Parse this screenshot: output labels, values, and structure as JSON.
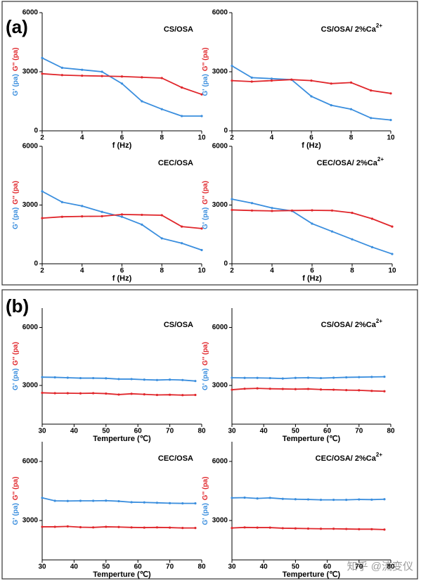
{
  "panel_labels": [
    "(a)",
    "(b)"
  ],
  "watermark": "知乎 @流变仪",
  "chart_data": [
    {
      "type": "line",
      "title": "CS/OSA",
      "xlabel": "f (Hz)",
      "x": [
        2,
        3,
        4,
        5,
        6,
        7,
        8,
        9,
        10
      ],
      "xlim": [
        2,
        10
      ],
      "xticks": [
        2,
        4,
        6,
        8,
        10
      ],
      "ylim": [
        0,
        6000
      ],
      "yticks": [
        0,
        3000,
        6000
      ],
      "series": [
        {
          "name": "G' (pa)",
          "color": "#3a8ede",
          "values": [
            3700,
            3200,
            3100,
            3000,
            2400,
            1500,
            1100,
            750,
            750
          ]
        },
        {
          "name": "G'' (pa)",
          "color": "#e0262b",
          "values": [
            2900,
            2830,
            2800,
            2780,
            2760,
            2720,
            2680,
            2200,
            1850
          ]
        }
      ]
    },
    {
      "type": "line",
      "title": "CS/OSA/ 2%Ca",
      "title_sup": "2+",
      "xlabel": "f (Hz)",
      "x": [
        2,
        3,
        4,
        5,
        6,
        7,
        8,
        9,
        10
      ],
      "xlim": [
        2,
        10
      ],
      "xticks": [
        2,
        4,
        6,
        8,
        10
      ],
      "ylim": [
        0,
        6000
      ],
      "yticks": [
        0,
        3000,
        6000
      ],
      "series": [
        {
          "name": "G' (pa)",
          "color": "#3a8ede",
          "values": [
            3300,
            2700,
            2650,
            2600,
            1750,
            1300,
            1100,
            650,
            550
          ]
        },
        {
          "name": "G'' (pa)",
          "color": "#e0262b",
          "values": [
            2550,
            2500,
            2550,
            2600,
            2550,
            2400,
            2450,
            2050,
            1900
          ]
        }
      ]
    },
    {
      "type": "line",
      "title": "CEC/OSA",
      "xlabel": "f (Hz)",
      "x": [
        2,
        3,
        4,
        5,
        6,
        7,
        8,
        9,
        10
      ],
      "xlim": [
        2,
        10
      ],
      "xticks": [
        2,
        4,
        6,
        8,
        10
      ],
      "ylim": [
        0,
        6000
      ],
      "yticks": [
        0,
        3000,
        6000
      ],
      "series": [
        {
          "name": "G' (pa)",
          "color": "#3a8ede",
          "values": [
            3700,
            3150,
            2950,
            2650,
            2400,
            2000,
            1300,
            1050,
            700
          ]
        },
        {
          "name": "G'' (pa)",
          "color": "#e0262b",
          "values": [
            2330,
            2400,
            2420,
            2430,
            2520,
            2500,
            2480,
            1900,
            1800
          ]
        }
      ]
    },
    {
      "type": "line",
      "title": "CEC/OSA/ 2%Ca",
      "title_sup": "2+",
      "xlabel": "f (Hz)",
      "x": [
        2,
        3,
        4,
        5,
        6,
        7,
        8,
        9,
        10
      ],
      "xlim": [
        2,
        10
      ],
      "xticks": [
        2,
        4,
        6,
        8,
        10
      ],
      "ylim": [
        0,
        6000
      ],
      "yticks": [
        0,
        3000,
        6000
      ],
      "series": [
        {
          "name": "G' (pa)",
          "color": "#3a8ede",
          "values": [
            3300,
            3100,
            2850,
            2700,
            2050,
            1650,
            1250,
            850,
            500
          ]
        },
        {
          "name": "G'' (pa)",
          "color": "#e0262b",
          "values": [
            2750,
            2720,
            2700,
            2720,
            2730,
            2720,
            2600,
            2300,
            1900
          ]
        }
      ]
    },
    {
      "type": "line",
      "title": "CS/OSA",
      "xlabel": "Temperture (℃)",
      "x": [
        30,
        34,
        38,
        42,
        46,
        50,
        54,
        58,
        62,
        66,
        70,
        74,
        78
      ],
      "xlim": [
        30,
        80
      ],
      "xticks": [
        30,
        40,
        50,
        60,
        70,
        80
      ],
      "ylim": [
        1000,
        7000
      ],
      "yticks": [
        3000,
        6000
      ],
      "series": [
        {
          "name": "G' (pa)",
          "color": "#3a8ede",
          "values": [
            3430,
            3420,
            3400,
            3380,
            3380,
            3370,
            3330,
            3330,
            3300,
            3280,
            3300,
            3280,
            3230
          ]
        },
        {
          "name": "G'' (pa)",
          "color": "#e0262b",
          "values": [
            2620,
            2600,
            2600,
            2590,
            2600,
            2580,
            2530,
            2570,
            2540,
            2510,
            2520,
            2500,
            2510
          ]
        }
      ]
    },
    {
      "type": "line",
      "title": "CS/OSA/ 2%Ca",
      "title_sup": "2+",
      "xlabel": "Temperture (℃)",
      "x": [
        30,
        34,
        38,
        42,
        46,
        50,
        54,
        58,
        62,
        66,
        70,
        74,
        78
      ],
      "xlim": [
        30,
        80
      ],
      "xticks": [
        30,
        40,
        50,
        60,
        70,
        80
      ],
      "ylim": [
        1000,
        7000
      ],
      "yticks": [
        3000,
        6000
      ],
      "series": [
        {
          "name": "G' (pa)",
          "color": "#3a8ede",
          "values": [
            3400,
            3390,
            3390,
            3380,
            3360,
            3390,
            3400,
            3380,
            3400,
            3420,
            3430,
            3440,
            3450
          ]
        },
        {
          "name": "G'' (pa)",
          "color": "#e0262b",
          "values": [
            2780,
            2830,
            2850,
            2830,
            2820,
            2810,
            2820,
            2790,
            2780,
            2760,
            2750,
            2720,
            2700
          ]
        }
      ]
    },
    {
      "type": "line",
      "title": "CEC/OSA",
      "xlabel": "Temperture (℃)",
      "x": [
        30,
        34,
        38,
        42,
        46,
        50,
        54,
        58,
        62,
        66,
        70,
        74,
        78
      ],
      "xlim": [
        30,
        80
      ],
      "xticks": [
        30,
        40,
        50,
        60,
        70,
        80
      ],
      "ylim": [
        1000,
        7000
      ],
      "yticks": [
        3000,
        6000
      ],
      "series": [
        {
          "name": "G' (pa)",
          "color": "#3a8ede",
          "values": [
            4150,
            4000,
            3990,
            4000,
            4000,
            4010,
            3980,
            3930,
            3920,
            3900,
            3880,
            3870,
            3870
          ]
        },
        {
          "name": "G'' (pa)",
          "color": "#e0262b",
          "values": [
            2680,
            2680,
            2700,
            2660,
            2650,
            2680,
            2670,
            2650,
            2640,
            2650,
            2640,
            2620,
            2620
          ]
        }
      ]
    },
    {
      "type": "line",
      "title": "CEC/OSA/ 2%Ca",
      "title_sup": "2+",
      "xlabel": "Temperture (℃)",
      "x": [
        30,
        34,
        38,
        42,
        46,
        50,
        54,
        58,
        62,
        66,
        70,
        74,
        78
      ],
      "xlim": [
        30,
        80
      ],
      "xticks": [
        30,
        40,
        50,
        60,
        70,
        80
      ],
      "ylim": [
        1000,
        7000
      ],
      "yticks": [
        3000,
        6000
      ],
      "series": [
        {
          "name": "G' (pa)",
          "color": "#3a8ede",
          "values": [
            4150,
            4160,
            4120,
            4150,
            4100,
            4080,
            4070,
            4050,
            4050,
            4050,
            4070,
            4060,
            4080
          ]
        },
        {
          "name": "G'' (pa)",
          "color": "#e0262b",
          "values": [
            2620,
            2650,
            2640,
            2640,
            2610,
            2600,
            2590,
            2580,
            2580,
            2570,
            2560,
            2560,
            2540
          ]
        }
      ]
    }
  ]
}
